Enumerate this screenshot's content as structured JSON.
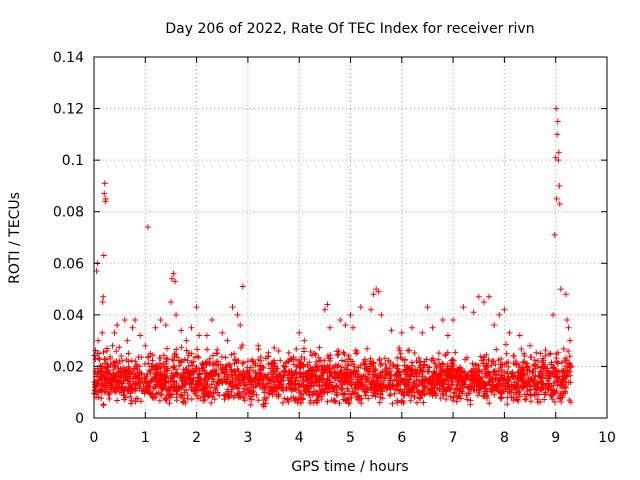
{
  "chart_data": {
    "type": "scatter",
    "title": "Day 206 of 2022, Rate Of TEC Index for receiver rivn",
    "xlabel": "GPS time / hours",
    "ylabel": "ROTI / TECUs",
    "xlim": [
      0,
      10
    ],
    "ylim": [
      0,
      0.14
    ],
    "x_ticks": [
      "0",
      "1",
      "2",
      "3",
      "4",
      "5",
      "6",
      "7",
      "8",
      "9",
      "10"
    ],
    "y_ticks": [
      "0",
      "0.02",
      "0.04",
      "0.06",
      "0.08",
      "0.1",
      "0.12",
      "0.14"
    ],
    "grid": true,
    "marker": "+",
    "series": [
      {
        "name": "ROTI",
        "color": "#ff0000",
        "points": [
          [
            0.02,
            0.013
          ],
          [
            0.04,
            0.008
          ],
          [
            0.05,
            0.057
          ],
          [
            0.07,
            0.06
          ],
          [
            0.08,
            0.03
          ],
          [
            0.1,
            0.025
          ],
          [
            0.12,
            0.018
          ],
          [
            0.14,
            0.02
          ],
          [
            0.16,
            0.033
          ],
          [
            0.17,
            0.045
          ],
          [
            0.18,
            0.047
          ],
          [
            0.19,
            0.063
          ],
          [
            0.2,
            0.087
          ],
          [
            0.21,
            0.091
          ],
          [
            0.22,
            0.084
          ],
          [
            0.23,
            0.085
          ],
          [
            0.25,
            0.026
          ],
          [
            0.28,
            0.02
          ],
          [
            0.32,
            0.015
          ],
          [
            0.36,
            0.028
          ],
          [
            0.4,
            0.033
          ],
          [
            0.45,
            0.036
          ],
          [
            0.5,
            0.022
          ],
          [
            0.55,
            0.012
          ],
          [
            0.6,
            0.038
          ],
          [
            0.65,
            0.03
          ],
          [
            0.7,
            0.018
          ],
          [
            0.75,
            0.035
          ],
          [
            0.8,
            0.038
          ],
          [
            0.85,
            0.02
          ],
          [
            0.9,
            0.032
          ],
          [
            1.0,
            0.028
          ],
          [
            1.05,
            0.074
          ],
          [
            1.1,
            0.025
          ],
          [
            1.2,
            0.035
          ],
          [
            1.3,
            0.038
          ],
          [
            1.4,
            0.036
          ],
          [
            1.5,
            0.045
          ],
          [
            1.52,
            0.054
          ],
          [
            1.55,
            0.056
          ],
          [
            1.58,
            0.053
          ],
          [
            1.6,
            0.04
          ],
          [
            1.7,
            0.034
          ],
          [
            1.8,
            0.03
          ],
          [
            1.9,
            0.035
          ],
          [
            2.0,
            0.043
          ],
          [
            2.05,
            0.032
          ],
          [
            2.2,
            0.032
          ],
          [
            2.3,
            0.038
          ],
          [
            2.4,
            0.025
          ],
          [
            2.5,
            0.033
          ],
          [
            2.6,
            0.03
          ],
          [
            2.7,
            0.043
          ],
          [
            2.8,
            0.04
          ],
          [
            2.85,
            0.036
          ],
          [
            2.9,
            0.051
          ],
          [
            3.0,
            0.022
          ],
          [
            3.2,
            0.028
          ],
          [
            3.4,
            0.024
          ],
          [
            3.6,
            0.026
          ],
          [
            3.8,
            0.022
          ],
          [
            4.0,
            0.033
          ],
          [
            4.1,
            0.03
          ],
          [
            4.3,
            0.025
          ],
          [
            4.5,
            0.042
          ],
          [
            4.55,
            0.044
          ],
          [
            4.6,
            0.035
          ],
          [
            4.8,
            0.038
          ],
          [
            4.9,
            0.036
          ],
          [
            5.0,
            0.04
          ],
          [
            5.05,
            0.035
          ],
          [
            5.2,
            0.043
          ],
          [
            5.4,
            0.042
          ],
          [
            5.45,
            0.048
          ],
          [
            5.5,
            0.05
          ],
          [
            5.55,
            0.049
          ],
          [
            5.6,
            0.04
          ],
          [
            5.8,
            0.034
          ],
          [
            6.0,
            0.033
          ],
          [
            6.2,
            0.035
          ],
          [
            6.4,
            0.033
          ],
          [
            6.5,
            0.043
          ],
          [
            6.6,
            0.035
          ],
          [
            6.8,
            0.038
          ],
          [
            6.9,
            0.032
          ],
          [
            7.0,
            0.038
          ],
          [
            7.2,
            0.043
          ],
          [
            7.4,
            0.041
          ],
          [
            7.5,
            0.047
          ],
          [
            7.6,
            0.045
          ],
          [
            7.7,
            0.047
          ],
          [
            7.8,
            0.036
          ],
          [
            7.9,
            0.04
          ],
          [
            8.0,
            0.042
          ],
          [
            8.1,
            0.033
          ],
          [
            8.3,
            0.032
          ],
          [
            8.5,
            0.028
          ],
          [
            8.7,
            0.025
          ],
          [
            8.9,
            0.025
          ],
          [
            8.95,
            0.04
          ],
          [
            8.98,
            0.071
          ],
          [
            9.0,
            0.101
          ],
          [
            9.01,
            0.12
          ],
          [
            9.02,
            0.085
          ],
          [
            9.03,
            0.11
          ],
          [
            9.04,
            0.115
          ],
          [
            9.05,
            0.1
          ],
          [
            9.06,
            0.103
          ],
          [
            9.07,
            0.09
          ],
          [
            9.08,
            0.083
          ],
          [
            9.1,
            0.05
          ],
          [
            9.2,
            0.048
          ],
          [
            9.22,
            0.038
          ],
          [
            9.25,
            0.035
          ],
          [
            9.28,
            0.03
          ]
        ],
        "dense_band": {
          "description": "dense background scatter of low ROTI values",
          "x_range": [
            0,
            9.3
          ],
          "y_range": [
            0.004,
            0.03
          ]
        }
      }
    ]
  }
}
